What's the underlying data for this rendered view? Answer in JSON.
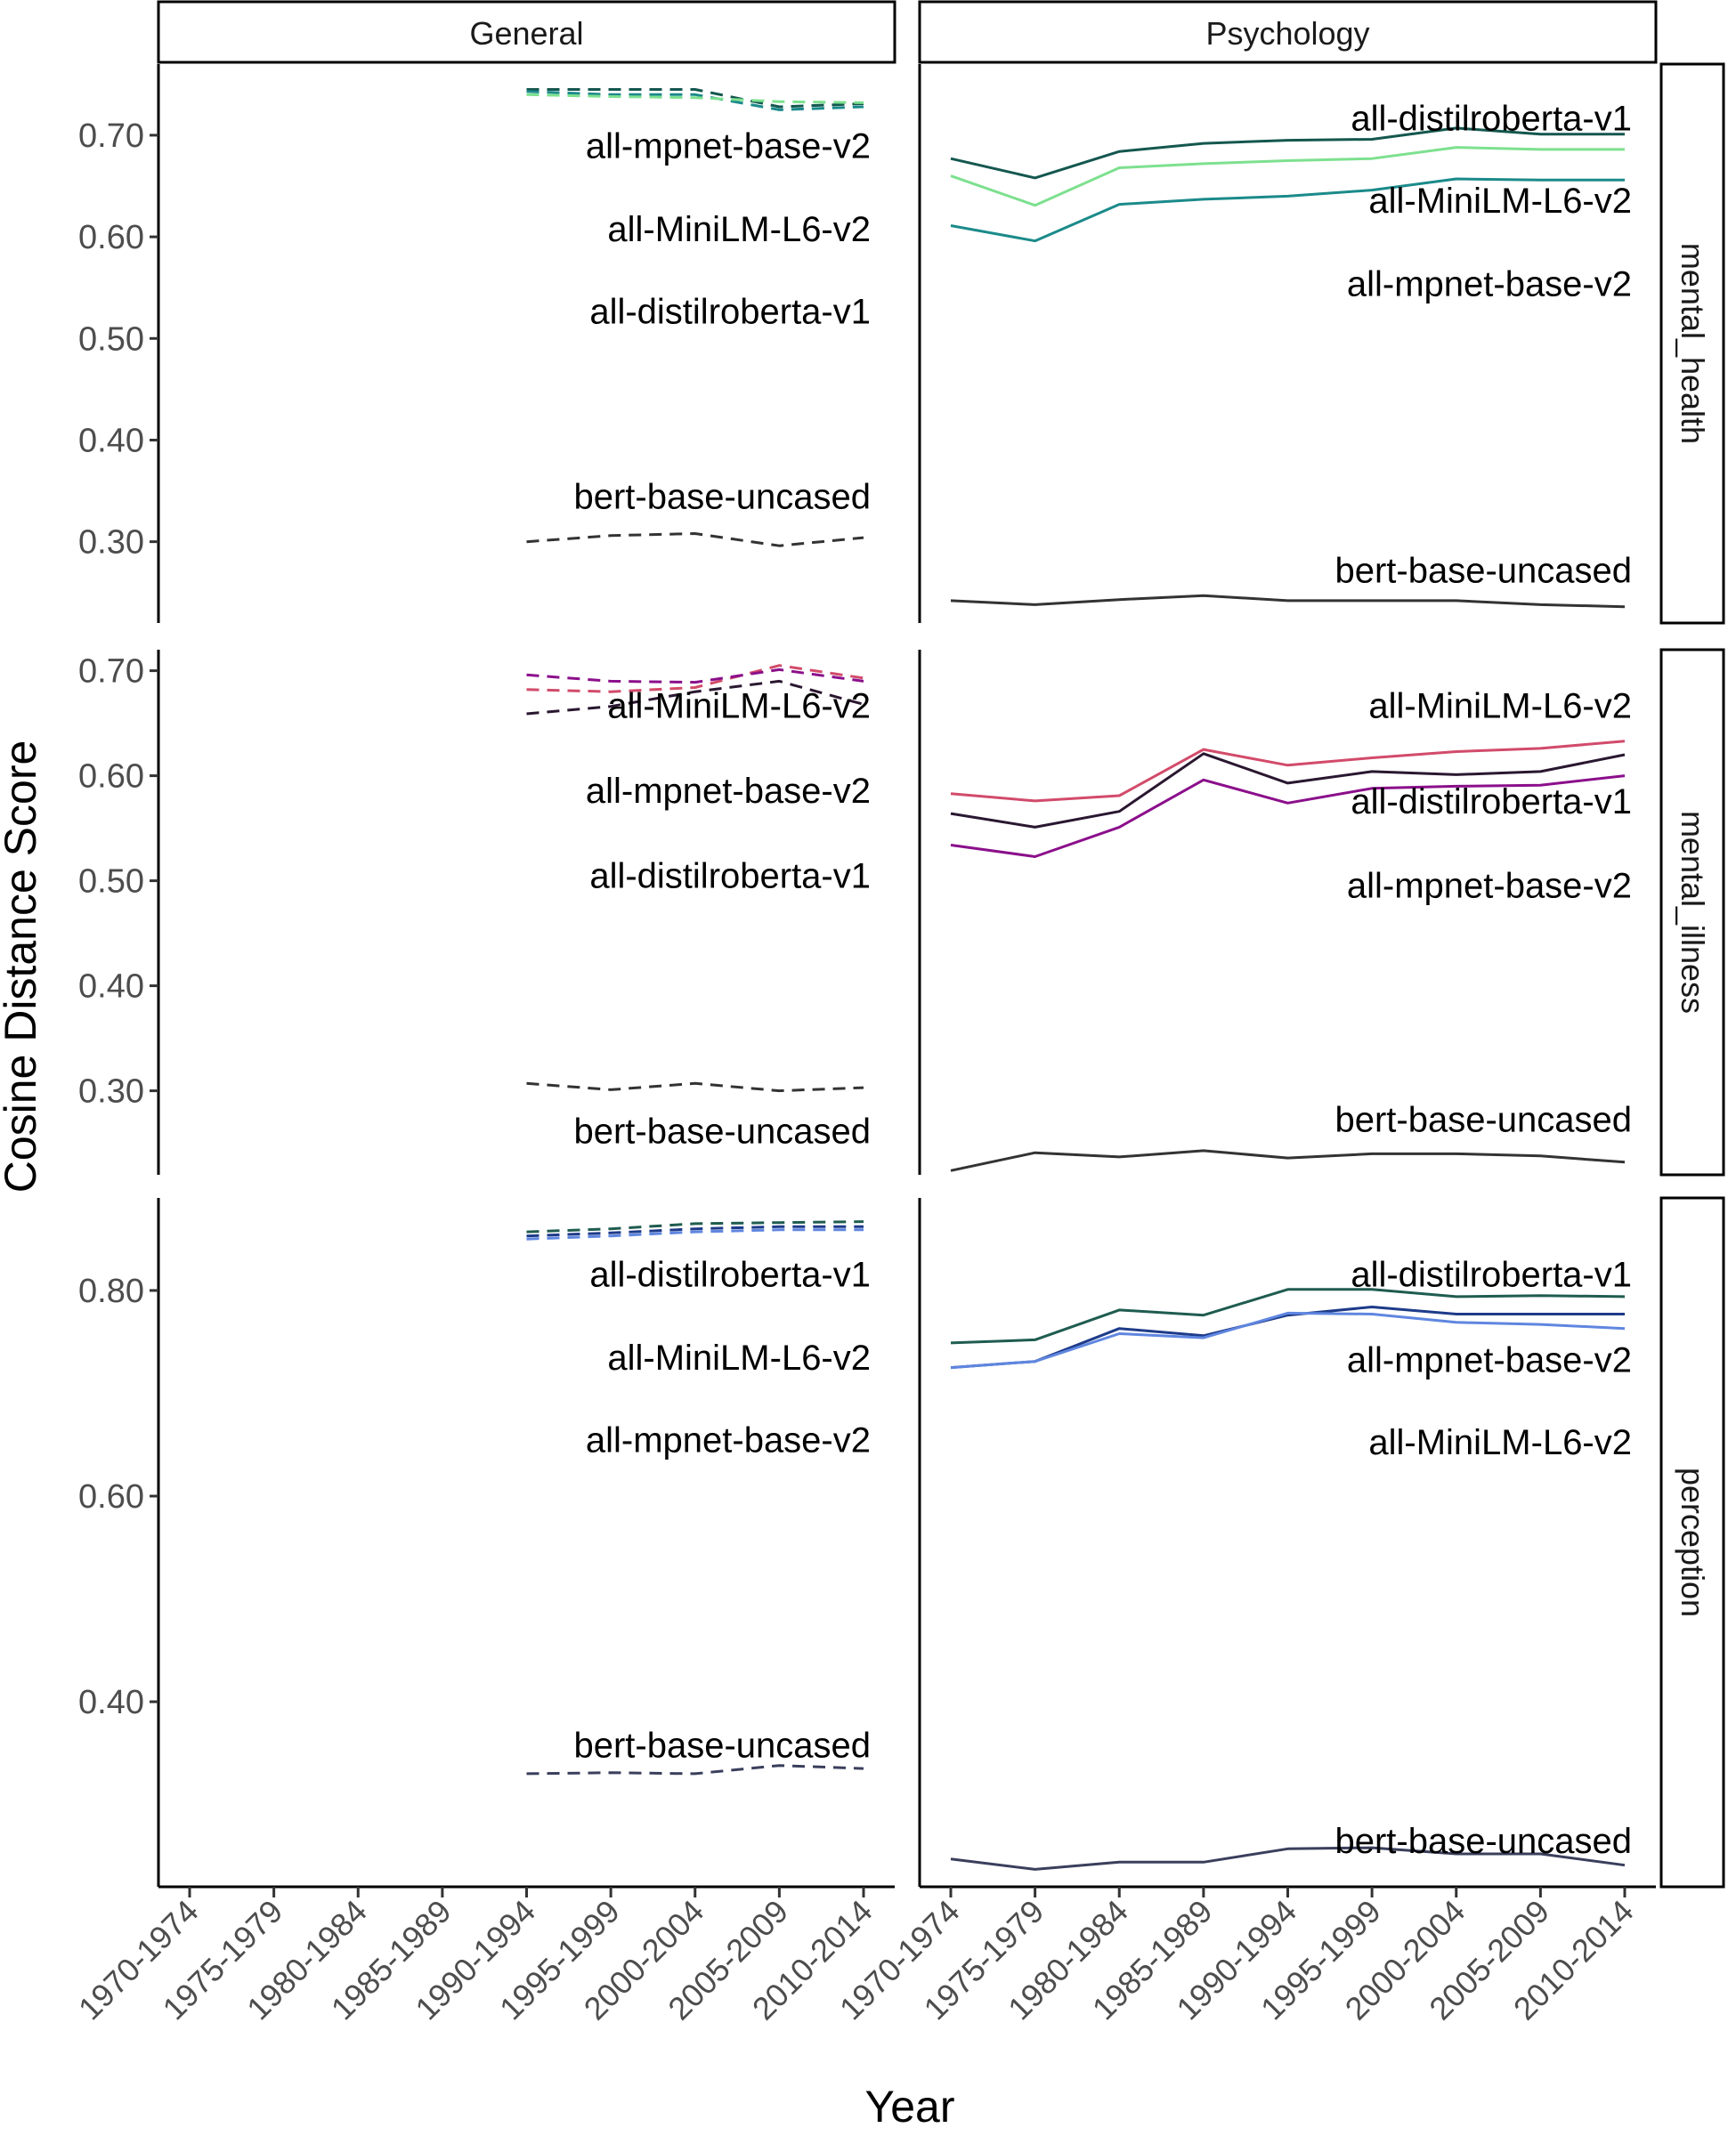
{
  "chart_data": {
    "type": "line",
    "title": "",
    "xlabel": "Year",
    "ylabel": "Cosine Distance Score",
    "categories": [
      "1970-1974",
      "1975-1979",
      "1980-1984",
      "1985-1989",
      "1990-1994",
      "1995-1999",
      "2000-2004",
      "2005-2009",
      "2010-2014"
    ],
    "columns": [
      "General",
      "Psychology"
    ],
    "rows": [
      {
        "name": "mental_health",
        "ylim": [
          0.22,
          0.77
        ],
        "yticks": [
          "0.30",
          "0.40",
          "0.50",
          "0.60",
          "0.70"
        ],
        "panels": {
          "General": {
            "style": "dashed",
            "series": [
              {
                "name": "all-distilroberta-v1",
                "color": "#14574f",
                "values": [
                  null,
                  null,
                  null,
                  null,
                  0.745,
                  0.745,
                  0.745,
                  0.728,
                  0.731
                ]
              },
              {
                "name": "all-MiniLM-L6-v2",
                "color": "#1b8a8a",
                "values": [
                  null,
                  null,
                  null,
                  null,
                  0.743,
                  0.74,
                  0.74,
                  0.725,
                  0.728
                ]
              },
              {
                "name": "all-mpnet-base-v2",
                "color": "#7de08f",
                "values": [
                  null,
                  null,
                  null,
                  null,
                  0.74,
                  0.738,
                  0.737,
                  0.733,
                  0.732
                ]
              },
              {
                "name": "bert-base-uncased",
                "color": "#333333",
                "values": [
                  null,
                  null,
                  null,
                  null,
                  0.3,
                  0.306,
                  0.308,
                  0.296,
                  0.304
                ]
              }
            ],
            "labels": [
              {
                "text": "all-mpnet-base-v2",
                "y": 0.69
              },
              {
                "text": "all-MiniLM-L6-v2",
                "y": 0.608
              },
              {
                "text": "all-distilroberta-v1",
                "y": 0.527
              },
              {
                "text": "bert-base-uncased",
                "y": 0.345
              }
            ]
          },
          "Psychology": {
            "style": "solid",
            "series": [
              {
                "name": "all-distilroberta-v1",
                "color": "#14574f",
                "values": [
                  0.677,
                  0.658,
                  0.684,
                  0.692,
                  0.695,
                  0.696,
                  0.707,
                  0.701,
                  0.701
                ]
              },
              {
                "name": "all-mpnet-base-v2",
                "color": "#7de08f",
                "values": [
                  0.66,
                  0.631,
                  0.668,
                  0.672,
                  0.675,
                  0.677,
                  0.688,
                  0.686,
                  0.686
                ]
              },
              {
                "name": "all-MiniLM-L6-v2",
                "color": "#1b8a8a",
                "values": [
                  0.611,
                  0.596,
                  0.632,
                  0.637,
                  0.64,
                  0.646,
                  0.657,
                  0.656,
                  0.656
                ]
              },
              {
                "name": "bert-base-uncased",
                "color": "#333333",
                "values": [
                  0.242,
                  0.238,
                  0.243,
                  0.247,
                  0.242,
                  0.242,
                  0.242,
                  0.238,
                  0.236
                ]
              }
            ],
            "labels": [
              {
                "text": "all-distilroberta-v1",
                "y": 0.717
              },
              {
                "text": "all-MiniLM-L6-v2",
                "y": 0.636
              },
              {
                "text": "all-mpnet-base-v2",
                "y": 0.554
              },
              {
                "text": "bert-base-uncased",
                "y": 0.272
              }
            ]
          }
        }
      },
      {
        "name": "mental_illness",
        "ylim": [
          0.22,
          0.72
        ],
        "yticks": [
          "0.30",
          "0.40",
          "0.50",
          "0.60",
          "0.70"
        ],
        "panels": {
          "General": {
            "style": "dashed",
            "series": [
              {
                "name": "all-distilroberta-v1",
                "color": "#2a1730",
                "values": [
                  null,
                  null,
                  null,
                  null,
                  0.659,
                  0.666,
                  0.68,
                  0.69,
                  0.668
                ]
              },
              {
                "name": "all-MiniLM-L6-v2",
                "color": "#d24b6a",
                "values": [
                  null,
                  null,
                  null,
                  null,
                  0.682,
                  0.68,
                  0.684,
                  0.705,
                  0.693
                ]
              },
              {
                "name": "all-mpnet-base-v2",
                "color": "#8b0f8b",
                "values": [
                  null,
                  null,
                  null,
                  null,
                  0.696,
                  0.69,
                  0.689,
                  0.701,
                  0.69
                ]
              },
              {
                "name": "bert-base-uncased",
                "color": "#333333",
                "values": [
                  null,
                  null,
                  null,
                  null,
                  0.307,
                  0.301,
                  0.307,
                  0.3,
                  0.303
                ]
              }
            ],
            "labels": [
              {
                "text": "all-MiniLM-L6-v2",
                "y": 0.667
              },
              {
                "text": "all-mpnet-base-v2",
                "y": 0.586
              },
              {
                "text": "all-distilroberta-v1",
                "y": 0.505
              },
              {
                "text": "bert-base-uncased",
                "y": 0.262
              }
            ]
          },
          "Psychology": {
            "style": "solid",
            "series": [
              {
                "name": "all-MiniLM-L6-v2",
                "color": "#d24b6a",
                "values": [
                  0.583,
                  0.576,
                  0.581,
                  0.625,
                  0.61,
                  0.617,
                  0.623,
                  0.626,
                  0.633
                ]
              },
              {
                "name": "all-distilroberta-v1",
                "color": "#2a1730",
                "values": [
                  0.564,
                  0.551,
                  0.566,
                  0.621,
                  0.593,
                  0.604,
                  0.601,
                  0.604,
                  0.62
                ]
              },
              {
                "name": "all-mpnet-base-v2",
                "color": "#8b0f8b",
                "values": [
                  0.534,
                  0.523,
                  0.551,
                  0.596,
                  0.574,
                  0.588,
                  0.59,
                  0.591,
                  0.6
                ]
              },
              {
                "name": "bert-base-uncased",
                "color": "#333333",
                "values": [
                  0.224,
                  0.241,
                  0.237,
                  0.243,
                  0.236,
                  0.24,
                  0.24,
                  0.238,
                  0.232
                ]
              }
            ],
            "labels": [
              {
                "text": "all-MiniLM-L6-v2",
                "y": 0.667
              },
              {
                "text": "all-distilroberta-v1",
                "y": 0.576
              },
              {
                "text": "all-mpnet-base-v2",
                "y": 0.496
              },
              {
                "text": "bert-base-uncased",
                "y": 0.273
              }
            ]
          }
        }
      },
      {
        "name": "perception",
        "ylim": [
          0.22,
          0.89
        ],
        "yticks": [
          "0.40",
          "0.60",
          "0.80"
        ],
        "panels": {
          "General": {
            "style": "dashed",
            "series": [
              {
                "name": "all-distilroberta-v1",
                "color": "#1f5c50",
                "values": [
                  null,
                  null,
                  null,
                  null,
                  0.857,
                  0.86,
                  0.865,
                  0.866,
                  0.867
                ]
              },
              {
                "name": "all-mpnet-base-v2",
                "color": "#1e3b8a",
                "values": [
                  null,
                  null,
                  null,
                  null,
                  0.853,
                  0.856,
                  0.86,
                  0.862,
                  0.862
                ]
              },
              {
                "name": "all-MiniLM-L6-v2",
                "color": "#5f86e0",
                "values": [
                  null,
                  null,
                  null,
                  null,
                  0.85,
                  0.853,
                  0.857,
                  0.859,
                  0.859
                ]
              },
              {
                "name": "bert-base-uncased",
                "color": "#3a3f5c",
                "values": [
                  null,
                  null,
                  null,
                  null,
                  0.33,
                  0.331,
                  0.33,
                  0.338,
                  0.335
                ]
              }
            ],
            "labels": [
              {
                "text": "all-distilroberta-v1",
                "y": 0.816
              },
              {
                "text": "all-MiniLM-L6-v2",
                "y": 0.735
              },
              {
                "text": "all-mpnet-base-v2",
                "y": 0.655
              },
              {
                "text": "bert-base-uncased",
                "y": 0.358
              }
            ]
          },
          "Psychology": {
            "style": "solid",
            "series": [
              {
                "name": "all-distilroberta-v1",
                "color": "#1f5c50",
                "values": [
                  0.749,
                  0.752,
                  0.781,
                  0.776,
                  0.801,
                  0.801,
                  0.794,
                  0.795,
                  0.794
                ]
              },
              {
                "name": "all-mpnet-base-v2",
                "color": "#1e3b8a",
                "values": [
                  0.725,
                  0.731,
                  0.763,
                  0.756,
                  0.776,
                  0.784,
                  0.777,
                  0.777,
                  0.777
                ]
              },
              {
                "name": "all-MiniLM-L6-v2",
                "color": "#5f86e0",
                "values": [
                  0.725,
                  0.731,
                  0.758,
                  0.754,
                  0.778,
                  0.777,
                  0.769,
                  0.767,
                  0.763
                ]
              },
              {
                "name": "bert-base-uncased",
                "color": "#3a3f5c",
                "values": [
                  0.247,
                  0.237,
                  0.244,
                  0.244,
                  0.257,
                  0.258,
                  0.252,
                  0.252,
                  0.241
                ]
              }
            ],
            "labels": [
              {
                "text": "all-distilroberta-v1",
                "y": 0.816
              },
              {
                "text": "all-mpnet-base-v2",
                "y": 0.733
              },
              {
                "text": "all-MiniLM-L6-v2",
                "y": 0.653
              },
              {
                "text": "bert-base-uncased",
                "y": 0.265
              }
            ]
          }
        }
      }
    ]
  }
}
